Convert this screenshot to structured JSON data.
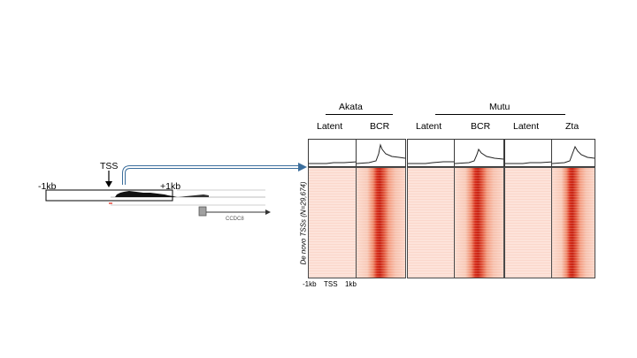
{
  "browser": {
    "tss_label": "TSS",
    "left_flank_label": "-1kb",
    "right_flank_label": "+1kb",
    "gene_label": "CCDC8"
  },
  "groups": {
    "akata": "Akata",
    "mutu": "Mutu"
  },
  "columns": [
    "Latent",
    "BCR",
    "Latent",
    "BCR",
    "Latent",
    "Zta"
  ],
  "heatmap": {
    "y_axis_label": "De novo TSSs (N=29,674)",
    "x_ticks": [
      "-1kb",
      "TSS",
      "1kb"
    ]
  },
  "colors": {
    "heat_low": "#fde3da",
    "heat_high": "#c92313",
    "arrow": "#3b6e9c"
  }
}
